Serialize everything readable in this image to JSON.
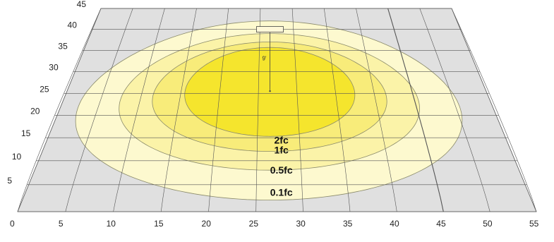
{
  "colors": {
    "floor": "#e0e0e0",
    "grid": "#555555",
    "zone_0_1": "#fdf9cf",
    "zone_0_5": "#fbf3a8",
    "zone_1": "#f8ec7a",
    "zone_2": "#f5e52d",
    "contour": "#8a8a6a"
  },
  "chart_data": {
    "type": "contour",
    "x_ticks": [
      "0",
      "5",
      "10",
      "15",
      "20",
      "25",
      "30",
      "35",
      "40",
      "45",
      "50",
      "55"
    ],
    "y_ticks": [
      "5",
      "10",
      "15",
      "20",
      "25",
      "30",
      "35",
      "40",
      "45"
    ],
    "xlim": [
      0,
      55
    ],
    "ylim": [
      0,
      45
    ],
    "mounting_height_label": "9'",
    "fixture_position": {
      "x": 26.5,
      "y": 40
    },
    "aim_point": {
      "x": 26.5,
      "y": 25.5
    },
    "zones": [
      {
        "label": "0.1fc",
        "color_key": "zone_0_1",
        "cx": 26.5,
        "cy": 22,
        "rx": 24,
        "ry": 20
      },
      {
        "label": "0.5fc",
        "color_key": "zone_0_5",
        "cx": 26.5,
        "cy": 23.5,
        "rx": 19,
        "ry": 15.5
      },
      {
        "label": "1fc",
        "color_key": "zone_1",
        "cx": 26.5,
        "cy": 24.5,
        "rx": 15,
        "ry": 12.5
      },
      {
        "label": "2fc",
        "color_key": "zone_2",
        "cx": 26.5,
        "cy": 25.5,
        "rx": 11,
        "ry": 10.2
      }
    ]
  }
}
